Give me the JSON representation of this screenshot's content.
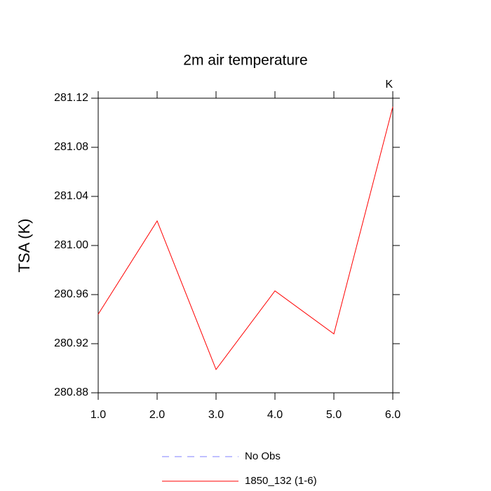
{
  "chart_data": {
    "type": "line",
    "title": "2m air temperature",
    "y_label": "TSA  (K)",
    "units_annotation": "K",
    "x": [
      1,
      2,
      3,
      4,
      5,
      6
    ],
    "xlim": [
      1,
      6
    ],
    "xticks": [
      {
        "value": 1,
        "label": "1.0"
      },
      {
        "value": 2,
        "label": "2.0"
      },
      {
        "value": 3,
        "label": "3.0"
      },
      {
        "value": 4,
        "label": "4.0"
      },
      {
        "value": 5,
        "label": "5.0"
      },
      {
        "value": 6,
        "label": "6.0"
      }
    ],
    "ylim": [
      280.88,
      281.12
    ],
    "yticks": [
      280.88,
      280.92,
      280.96,
      {
        "value": 281.0,
        "label": "281.00"
      },
      281.04,
      281.08,
      281.12
    ],
    "grid": false,
    "series": [
      {
        "name": "No Obs",
        "color": "#8080ff",
        "dashed": true,
        "values": [
          null,
          null,
          null,
          null,
          null,
          null
        ]
      },
      {
        "name": "1850_132 (1-6)",
        "color": "#ff0000",
        "dashed": false,
        "values": [
          280.944,
          281.02,
          280.899,
          280.963,
          280.928,
          281.113
        ]
      }
    ]
  }
}
